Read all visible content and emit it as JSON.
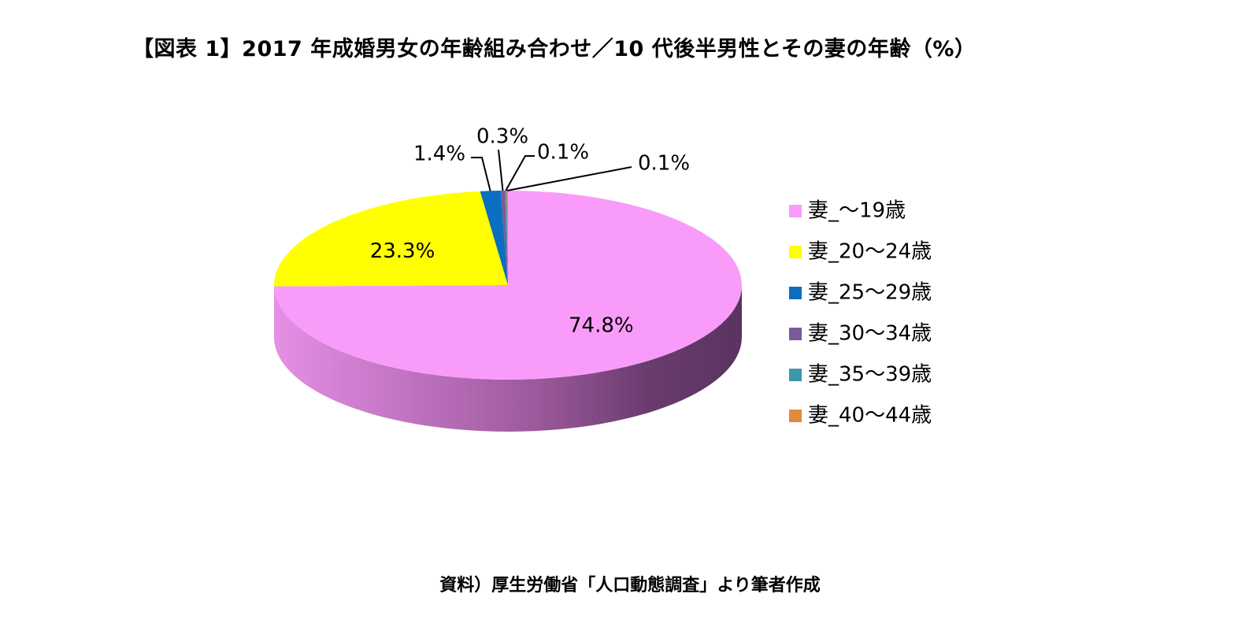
{
  "title": "【図表 1】2017 年成婚男女の年齢組み合わせ／10 代後半男性とその妻の年齢（%）",
  "source": "資料）厚生労働省「人口動態調査」より筆者作成",
  "chart_data": {
    "type": "pie",
    "title": "【図表 1】2017 年成婚男女の年齢組み合わせ／10 代後半男性とその妻の年齢（%）",
    "categories": [
      "妻_～19歳",
      "妻_20～24歳",
      "妻_25～29歳",
      "妻_30～34歳",
      "妻_35～39歳",
      "妻_40～44歳"
    ],
    "values": [
      74.8,
      23.3,
      1.4,
      0.3,
      0.1,
      0.1
    ],
    "data_labels": [
      "74.8%",
      "23.3%",
      "1.4%",
      "0.3%",
      "0.1%",
      "0.1%"
    ],
    "colors": [
      "#F99CF9",
      "#FFFF00",
      "#0B6EBE",
      "#7A5A9A",
      "#3A98A8",
      "#E08A3C"
    ],
    "side_colors": [
      "#B868B8",
      "#B8B800",
      "#074A82",
      "#4E3A66",
      "#266672",
      "#9A5E28"
    ],
    "legend_position": "right",
    "style": "3d"
  }
}
